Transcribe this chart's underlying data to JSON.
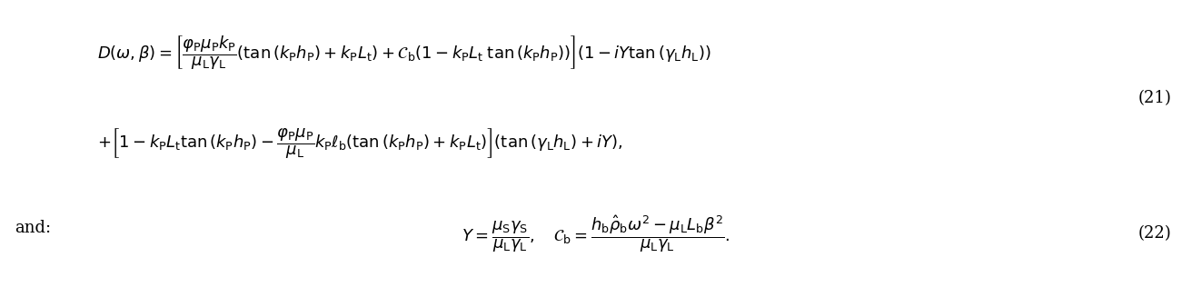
{
  "eq21_line1": "D(\\omega, \\beta) = \\left[\\frac{\\varphi_{\\mathrm{P}}\\mu_{\\mathrm{P}}k_{\\mathrm{P}}}{\\mu_{\\mathrm{L}}\\gamma_{\\mathrm{L}}}\\left(\\tan\\left(k_{\\mathrm{P}}h_{\\mathrm{P}}\\right) + k_{\\mathrm{P}}L_{\\mathrm{t}}\\right) + \\mathcal{C}_{\\mathrm{b}}\\left(1 - k_{\\mathrm{P}}L_{\\mathrm{t}}\\;\\tan\\left(k_{\\mathrm{P}}h_{\\mathrm{P}}\\right)\\right)\\right]\\left(1 - iY\\tan\\left(\\gamma_{\\mathrm{L}}h_{\\mathrm{L}}\\right)\\right)",
  "eq21_line2": "+ \\left[1 - k_{\\mathrm{P}}L_{\\mathrm{t}}\\tan\\left(k_{\\mathrm{P}}h_{\\mathrm{P}}\\right) - \\frac{\\varphi_{\\mathrm{P}}\\mu_{\\mathrm{P}}}{\\mu_{\\mathrm{L}}}k_{\\mathrm{P}}\\ell_{\\mathrm{b}}\\left(\\tan\\left(k_{\\mathrm{P}}h_{\\mathrm{P}}\\right) + k_{\\mathrm{P}}L_{\\mathrm{t}}\\right)\\right]\\left(\\tan\\left(\\gamma_{\\mathrm{L}}h_{\\mathrm{L}}\\right) + iY\\right),",
  "eq22": "Y = \\frac{\\mu_{\\mathrm{S}}\\gamma_{\\mathrm{S}}}{\\mu_{\\mathrm{L}}\\gamma_{\\mathrm{L}}},\\quad \\mathcal{C}_{\\mathrm{b}} = \\frac{h_{\\mathrm{b}}\\hat{\\rho}_{\\mathrm{b}}\\omega^{2} - \\mu_{\\mathrm{L}}L_{\\mathrm{b}}\\beta^{2}}{\\mu_{\\mathrm{L}}\\gamma_{\\mathrm{L}}}.",
  "label21": "(21)",
  "label22": "(22)",
  "and_text": "and:",
  "bg_color": "#ffffff",
  "text_color": "#000000",
  "fontsize": 13
}
